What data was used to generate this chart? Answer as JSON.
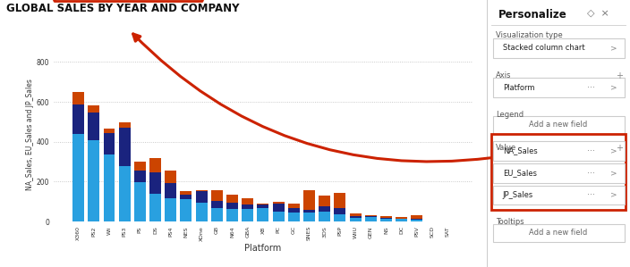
{
  "title": "GLOBAL SALES BY YEAR AND COMPANY",
  "xlabel": "Platform",
  "ylabel": "NA_Sales, EU_Sales and JP_Sales",
  "platforms": [
    "X360",
    "PS2",
    "Wii",
    "PS3",
    "PS",
    "DS",
    "PS4",
    "NES",
    "XOne",
    "GB",
    "N64",
    "GBA",
    "XB",
    "PC",
    "GC",
    "SNES",
    "3DS",
    "PSP",
    "WiiU",
    "GEN",
    "NS",
    "DC",
    "PSV",
    "SCD",
    "SAT"
  ],
  "na_sales": [
    441,
    407,
    335,
    277,
    199,
    140,
    119,
    113,
    93,
    67,
    64,
    63,
    67,
    49,
    44,
    46,
    48,
    36,
    17,
    21,
    13,
    13,
    8,
    0.9,
    1.1
  ],
  "eu_sales": [
    148,
    140,
    107,
    195,
    57,
    105,
    73,
    22,
    59,
    35,
    32,
    24,
    20,
    40,
    23,
    13,
    28,
    30,
    12,
    8,
    5,
    3,
    6,
    0.2,
    0.3
  ],
  "jp_sales": [
    60,
    35,
    23,
    26,
    44,
    75,
    65,
    18,
    5,
    55,
    40,
    29,
    2,
    10,
    22,
    100,
    55,
    80,
    10,
    5,
    9,
    7,
    17,
    0.2,
    0.2
  ],
  "na_color": "#29A0E0",
  "eu_color": "#1A237E",
  "jp_color": "#CC4400",
  "arrow_color": "#CC2200",
  "legend_box_color": "#CC2200",
  "value_box_color": "#CC2200",
  "panel_bg": "#F0F0F0",
  "chart_bg": "#FFFFFF",
  "ylim": [
    0,
    870
  ],
  "yticks": [
    0,
    200,
    400,
    600,
    800
  ],
  "personalize_title": "Personalize",
  "vis_type_label": "Visualization type",
  "vis_type_value": "Stacked column chart",
  "axis_label": "Axis",
  "axis_value": "Platform",
  "legend_label": "Legend",
  "legend_add": "Add a new field",
  "value_label": "Value",
  "value_fields": [
    "NA_Sales",
    "EU_Sales",
    "JP_Sales"
  ],
  "tooltips_label": "Tooltips",
  "tooltips_add": "Add a new field"
}
